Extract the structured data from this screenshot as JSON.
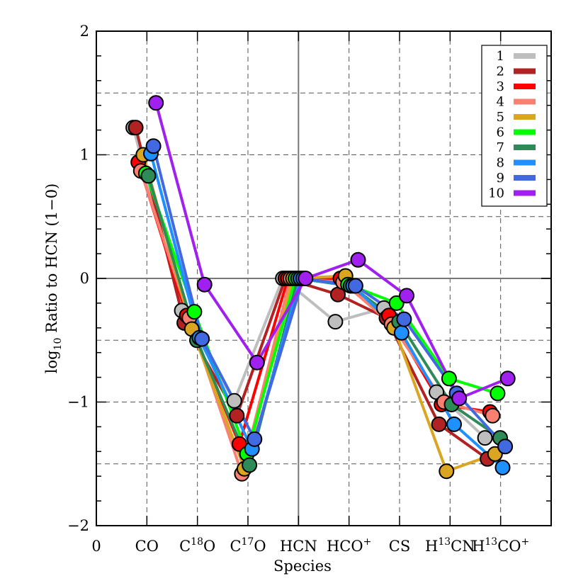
{
  "chart_data": {
    "type": "line",
    "xlabel": "Species",
    "ylabel_prefix": "log",
    "ylabel_sub": "10",
    "ylabel_rest": " Ratio to HCN (1−0)",
    "xlim": [
      0,
      9
    ],
    "ylim": [
      -2,
      2
    ],
    "grid": true,
    "legend_position": "top-right",
    "x_tick_labels": [
      {
        "x": 0,
        "text": "0"
      },
      {
        "x": 1,
        "parts": [
          {
            "t": "CO"
          }
        ]
      },
      {
        "x": 2,
        "parts": [
          {
            "t": "C"
          },
          {
            "t": "18",
            "sup": true
          },
          {
            "t": "O"
          }
        ]
      },
      {
        "x": 3,
        "parts": [
          {
            "t": "C"
          },
          {
            "t": "17",
            "sup": true
          },
          {
            "t": "O"
          }
        ]
      },
      {
        "x": 4,
        "parts": [
          {
            "t": "HCN"
          }
        ]
      },
      {
        "x": 5,
        "parts": [
          {
            "t": "HCO"
          },
          {
            "t": "+",
            "sup": true
          }
        ]
      },
      {
        "x": 6,
        "parts": [
          {
            "t": "CS"
          }
        ]
      },
      {
        "x": 7,
        "parts": [
          {
            "t": "H"
          },
          {
            "t": "13",
            "sup": true
          },
          {
            "t": "CN"
          }
        ]
      },
      {
        "x": 8,
        "parts": [
          {
            "t": "H"
          },
          {
            "t": "13",
            "sup": true
          },
          {
            "t": "CO"
          },
          {
            "t": "+",
            "sup": true
          }
        ]
      }
    ],
    "y_ticks": [
      -2,
      -1,
      0,
      1,
      2
    ],
    "y_tick_labels": [
      "−2",
      "−1",
      "0",
      "1",
      "2"
    ],
    "x_minor_grid": [
      1,
      2,
      3,
      5,
      6,
      7,
      8
    ],
    "y_minor_grid": [
      -1.5,
      -1,
      -0.5,
      0.5,
      1,
      1.5
    ],
    "series": [
      {
        "name": "1",
        "color": "#bebebe",
        "x": [
          0.73,
          1.69,
          2.73,
          3.69,
          4.73,
          5.69,
          6.73,
          7.69
        ],
        "y": [
          1.22,
          -0.26,
          -0.99,
          0.0,
          -0.35,
          -0.24,
          -0.92,
          -1.29
        ]
      },
      {
        "name": "2",
        "color": "#b22222",
        "x": [
          0.78,
          1.74,
          2.78,
          3.74,
          4.78,
          5.74,
          6.78,
          7.74
        ],
        "y": [
          1.22,
          -0.36,
          -1.11,
          0.0,
          -0.13,
          -0.32,
          -1.18,
          -1.46
        ]
      },
      {
        "name": "3",
        "color": "#ff0000",
        "x": [
          0.83,
          1.79,
          2.83,
          3.79,
          4.83,
          5.79,
          6.83,
          7.79
        ],
        "y": [
          0.94,
          -0.3,
          -1.34,
          0.0,
          0.0,
          -0.3,
          -1.02,
          -1.08
        ]
      },
      {
        "name": "4",
        "color": "#fa8072",
        "x": [
          0.88,
          1.84,
          2.88,
          3.84,
          4.88,
          5.84,
          6.88,
          7.84
        ],
        "y": [
          0.87,
          -0.32,
          -1.58,
          0.0,
          -0.03,
          -0.37,
          -1.0,
          -1.11
        ]
      },
      {
        "name": "5",
        "color": "#daa520",
        "x": [
          0.93,
          1.89,
          2.93,
          3.89,
          4.93,
          5.89,
          6.93,
          7.89
        ],
        "y": [
          1.0,
          -0.41,
          -1.54,
          0.0,
          0.02,
          -0.4,
          -1.56,
          -1.42
        ]
      },
      {
        "name": "6",
        "color": "#00ff00",
        "x": [
          0.98,
          1.94,
          2.98,
          3.94,
          4.98,
          5.94,
          6.98,
          7.94
        ],
        "y": [
          0.85,
          -0.27,
          -1.42,
          0.0,
          -0.05,
          -0.2,
          -0.81,
          -0.93
        ]
      },
      {
        "name": "7",
        "color": "#2e8b57",
        "x": [
          1.03,
          1.99,
          3.03,
          3.99,
          5.03,
          5.99,
          7.03,
          7.99
        ],
        "y": [
          0.83,
          -0.5,
          -1.51,
          0.0,
          -0.06,
          -0.35,
          -1.02,
          -1.29
        ]
      },
      {
        "name": "8",
        "color": "#1e90ff",
        "x": [
          1.08,
          2.04,
          3.08,
          4.04,
          5.08,
          6.04,
          7.08,
          8.04
        ],
        "y": [
          1.01,
          -0.48,
          -1.38,
          0.0,
          -0.06,
          -0.44,
          -1.18,
          -1.53
        ]
      },
      {
        "name": "9",
        "color": "#4169e1",
        "x": [
          1.13,
          2.09,
          3.13,
          4.09,
          5.13,
          6.09,
          7.13,
          8.09
        ],
        "y": [
          1.07,
          -0.49,
          -1.3,
          0.0,
          -0.06,
          -0.33,
          -0.93,
          -1.36
        ]
      },
      {
        "name": "10",
        "color": "#a020f0",
        "x": [
          1.18,
          2.14,
          3.18,
          4.14,
          5.18,
          6.14,
          7.18,
          8.14
        ],
        "y": [
          1.42,
          -0.05,
          -0.68,
          0.0,
          0.15,
          -0.14,
          -0.97,
          -0.81
        ]
      }
    ]
  }
}
